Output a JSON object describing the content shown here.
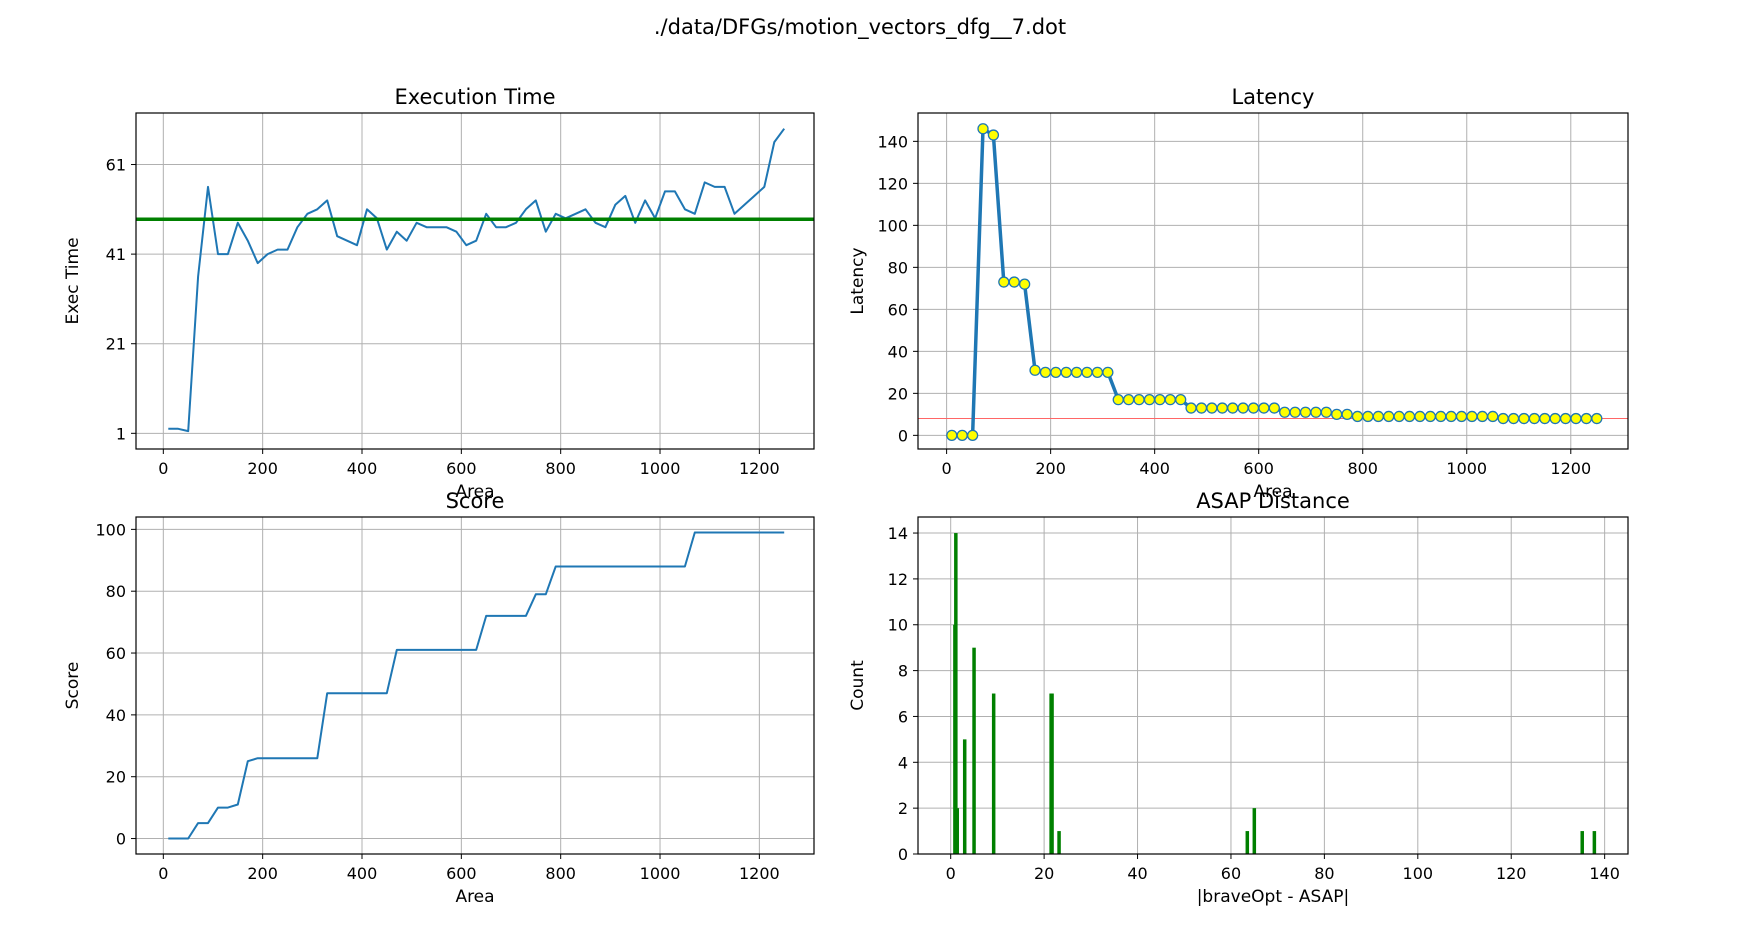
{
  "suptitle": "./data/DFGs/motion_vectors_dfg__7.dot",
  "chart_data": [
    {
      "id": "exec",
      "type": "line",
      "title": "Execution Time",
      "xlabel": "Area",
      "ylabel": "Exec Time",
      "xlim": [
        -55,
        1310
      ],
      "ylim": [
        -2.5,
        72.5
      ],
      "xticks": [
        0,
        200,
        400,
        600,
        800,
        1000,
        1200
      ],
      "yticks": [
        1,
        21,
        41,
        61
      ],
      "grid": true,
      "series": [
        {
          "color": "#1f77b4",
          "x": [
            10,
            30,
            50,
            70,
            90,
            110,
            130,
            150,
            170,
            190,
            210,
            230,
            250,
            270,
            290,
            310,
            330,
            350,
            370,
            390,
            410,
            430,
            450,
            470,
            490,
            510,
            530,
            550,
            570,
            590,
            610,
            630,
            650,
            670,
            690,
            710,
            730,
            750,
            770,
            790,
            810,
            830,
            850,
            870,
            890,
            910,
            930,
            950,
            970,
            990,
            1010,
            1030,
            1050,
            1070,
            1090,
            1110,
            1130,
            1150,
            1170,
            1190,
            1210,
            1230,
            1250
          ],
          "y": [
            2,
            2,
            1.5,
            36,
            56,
            41,
            41,
            48,
            44,
            39,
            41,
            42,
            42,
            47,
            50,
            51,
            53,
            45,
            44,
            43,
            51,
            49,
            42,
            46,
            44,
            48,
            47,
            47,
            47,
            46,
            43,
            44,
            50,
            47,
            47,
            48,
            51,
            53,
            46,
            50,
            49,
            50,
            51,
            48,
            47,
            52,
            54,
            48,
            53,
            49,
            55,
            55,
            51,
            50,
            57,
            56,
            56,
            50,
            52,
            54,
            56,
            66,
            69
          ]
        },
        {
          "color": "#008000",
          "x": [
            -55,
            1310
          ],
          "y": [
            48.8,
            48.8
          ]
        }
      ]
    },
    {
      "id": "latency",
      "type": "line",
      "title": "Latency",
      "xlabel": "Area",
      "ylabel": "Latency",
      "xlim": [
        -55,
        1310
      ],
      "ylim": [
        -6.5,
        153.5
      ],
      "xticks": [
        0,
        200,
        400,
        600,
        800,
        1000,
        1200
      ],
      "yticks": [
        0,
        20,
        40,
        60,
        80,
        100,
        120,
        140
      ],
      "grid": true,
      "reference_line": 8,
      "series": [
        {
          "color": "#1f77b4",
          "marker_fill": "#ffff00",
          "x": [
            10,
            30,
            50,
            70,
            90,
            110,
            130,
            150,
            170,
            190,
            210,
            230,
            250,
            270,
            290,
            310,
            330,
            350,
            370,
            390,
            410,
            430,
            450,
            470,
            490,
            510,
            530,
            550,
            570,
            590,
            610,
            630,
            650,
            670,
            690,
            710,
            730,
            750,
            770,
            790,
            810,
            830,
            850,
            870,
            890,
            910,
            930,
            950,
            970,
            990,
            1010,
            1030,
            1050,
            1070,
            1090,
            1110,
            1130,
            1150,
            1170,
            1190,
            1210,
            1230,
            1250
          ],
          "y": [
            0,
            0,
            0,
            146,
            143,
            73,
            73,
            72,
            31,
            30,
            30,
            30,
            30,
            30,
            30,
            30,
            17,
            17,
            17,
            17,
            17,
            17,
            17,
            13,
            13,
            13,
            13,
            13,
            13,
            13,
            13,
            13,
            11,
            11,
            11,
            11,
            11,
            10,
            10,
            9,
            9,
            9,
            9,
            9,
            9,
            9,
            9,
            9,
            9,
            9,
            9,
            9,
            9,
            8,
            8,
            8,
            8,
            8,
            8,
            8,
            8,
            8,
            8
          ]
        }
      ]
    },
    {
      "id": "score",
      "type": "line",
      "title": "Score",
      "xlabel": "Area",
      "ylabel": "Score",
      "xlim": [
        -55,
        1310
      ],
      "ylim": [
        -5,
        104
      ],
      "xticks": [
        0,
        200,
        400,
        600,
        800,
        1000,
        1200
      ],
      "yticks": [
        0,
        20,
        40,
        60,
        80,
        100
      ],
      "grid": true,
      "series": [
        {
          "color": "#1f77b4",
          "x": [
            10,
            50,
            70,
            90,
            110,
            130,
            150,
            170,
            190,
            210,
            310,
            330,
            450,
            470,
            630,
            650,
            730,
            750,
            770,
            790,
            1050,
            1070,
            1250
          ],
          "y": [
            0,
            0,
            5,
            5,
            10,
            10,
            11,
            25,
            26,
            26,
            26,
            47,
            47,
            61,
            61,
            72,
            72,
            79,
            79,
            88,
            88,
            99,
            99
          ]
        }
      ]
    },
    {
      "id": "asap",
      "type": "bar",
      "title": "ASAP Distance",
      "xlabel": "|braveOpt - ASAP|",
      "ylabel": "Count",
      "xlim": [
        -7,
        145
      ],
      "ylim": [
        0,
        14.7
      ],
      "xticks": [
        0,
        20,
        40,
        60,
        80,
        100,
        120,
        140
      ],
      "yticks": [
        0,
        2,
        4,
        6,
        8,
        10,
        12,
        14
      ],
      "grid": true,
      "color": "#008000",
      "bar_width": 0.75,
      "x": [
        0.9,
        1.1,
        1.4,
        3,
        5,
        9.2,
        21.5,
        21.7,
        23.2,
        63.5,
        65,
        135.2,
        137.8
      ],
      "values": [
        10,
        14,
        2,
        5,
        9,
        7,
        7,
        7,
        1,
        1,
        2,
        1,
        1
      ]
    }
  ]
}
